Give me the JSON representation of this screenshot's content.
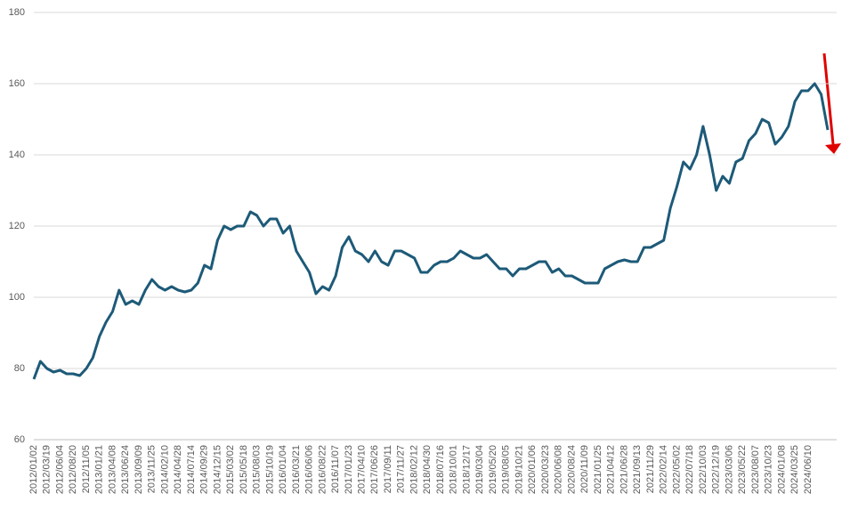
{
  "chart_data": {
    "type": "line",
    "categories": [
      "2012/01/02",
      null,
      "2012/03/19",
      null,
      "2012/06/04",
      null,
      "2012/08/20",
      null,
      "2012/11/05",
      null,
      "2013/01/21",
      null,
      "2013/04/08",
      null,
      "2013/06/24",
      null,
      "2013/09/09",
      null,
      "2013/11/25",
      null,
      "2014/02/10",
      null,
      "2014/04/28",
      null,
      "2014/07/14",
      null,
      "2014/09/29",
      null,
      "2014/12/15",
      null,
      "2015/03/02",
      null,
      "2015/05/18",
      null,
      "2015/08/03",
      null,
      "2015/10/19",
      null,
      "2016/01/04",
      null,
      "2016/03/21",
      null,
      "2016/06/06",
      null,
      "2016/08/22",
      null,
      "2016/11/07",
      null,
      "2017/01/23",
      null,
      "2017/04/10",
      null,
      "2017/06/26",
      null,
      "2017/09/11",
      null,
      "2017/11/27",
      null,
      "2018/02/12",
      null,
      "2018/04/30",
      null,
      "2018/07/16",
      null,
      "2018/10/01",
      null,
      "2018/12/17",
      null,
      "2019/03/04",
      null,
      "2019/05/20",
      null,
      "2019/08/05",
      null,
      "2019/10/21",
      null,
      "2020/01/06",
      null,
      "2020/03/23",
      null,
      "2020/06/08",
      null,
      "2020/08/24",
      null,
      "2020/11/09",
      null,
      "2021/01/25",
      null,
      "2021/04/12",
      null,
      "2021/06/28",
      null,
      "2021/09/13",
      null,
      "2021/11/29",
      null,
      "2022/02/14",
      null,
      "2022/05/02",
      null,
      "2022/07/18",
      null,
      "2022/10/03",
      null,
      "2022/12/19",
      null,
      "2023/03/06",
      null,
      "2023/05/22",
      null,
      "2023/08/07",
      null,
      "2023/10/23",
      null,
      "2024/01/08",
      null,
      "2024/03/25",
      null,
      "2024/06/10",
      null,
      null,
      null
    ],
    "series": [
      {
        "color": "#1d5a78",
        "values": [
          77,
          82,
          80,
          79,
          79.5,
          78.5,
          78.5,
          78,
          80,
          83,
          89,
          93,
          96,
          102,
          98,
          99,
          98,
          102,
          105,
          103,
          102,
          103,
          102,
          101.5,
          102,
          104,
          109,
          108,
          116,
          120,
          119,
          120,
          120,
          124,
          123,
          120,
          122,
          122,
          118,
          120,
          113,
          110,
          107,
          101,
          103,
          102,
          106,
          114,
          117,
          113,
          112,
          110,
          113,
          110,
          109,
          113,
          113,
          112,
          111,
          107,
          107,
          109,
          110,
          110,
          111,
          113,
          112,
          111,
          111,
          112,
          110,
          108,
          108,
          106,
          108,
          108,
          109,
          110,
          110,
          107,
          108,
          106,
          106,
          105,
          104,
          104,
          104,
          108,
          109,
          110,
          110.5,
          110,
          110,
          114,
          114,
          115,
          116,
          125,
          131,
          138,
          136,
          140,
          148,
          140,
          130,
          134,
          132,
          138,
          139,
          144,
          146,
          150,
          149,
          143,
          145,
          148,
          155,
          158,
          158,
          160,
          157,
          147
        ]
      }
    ],
    "ylim": [
      60,
      180
    ],
    "yticks": [
      60,
      80,
      100,
      120,
      140,
      160,
      180
    ],
    "grid": true
  }
}
